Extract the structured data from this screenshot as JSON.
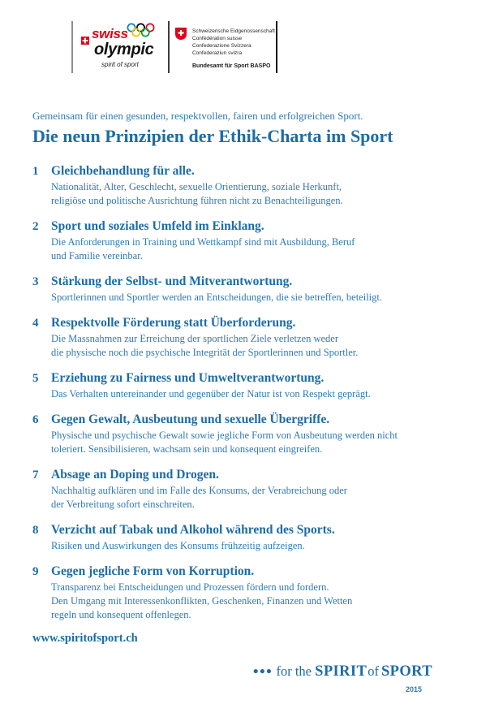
{
  "colors": {
    "heading_blue": "#1d6ca5",
    "body_blue": "#2e7ab2",
    "swiss_red": "#e2001a",
    "ring_blue": "#0085c7",
    "ring_black": "#000000",
    "ring_red": "#df0024",
    "ring_yellow": "#f4c300",
    "ring_green": "#009f3d"
  },
  "header": {
    "swiss_olympic": {
      "word_top": "swiss",
      "word_bottom": "olympic",
      "tagline": "spirit of sport",
      "cross_icon": "swiss-cross",
      "rings_icon": "olympic-rings"
    },
    "confederation": {
      "shield_icon": "swiss-shield",
      "names": "Schweizerische Eidgenossenschaft\nConfédération suisse\nConfederazione Svizzera\nConfederaziun svizra",
      "department": "Bundesamt für Sport BASPO"
    }
  },
  "intro": {
    "subtitle": "Gemeinsam für einen gesunden, respektvollen, fairen und erfolgreichen Sport.",
    "title": "Die neun Prinzipien der Ethik-Charta im Sport"
  },
  "principles": [
    {
      "number": "1",
      "heading": "Gleichbehandlung für alle.",
      "body": "Nationalität, Alter, Geschlecht, sexuelle Orientierung, soziale Herkunft,\nreligiöse und politische Ausrichtung führen nicht zu Benachteiligungen."
    },
    {
      "number": "2",
      "heading": "Sport und soziales Umfeld im Einklang.",
      "body": "Die Anforderungen in Training und Wettkampf sind mit Ausbildung, Beruf\nund Familie vereinbar."
    },
    {
      "number": "3",
      "heading": "Stärkung der Selbst- und Mitverantwortung.",
      "body": "Sportlerinnen und Sportler werden an Entscheidungen, die sie betreffen, beteiligt."
    },
    {
      "number": "4",
      "heading": "Respektvolle Förderung statt Überforderung.",
      "body": "Die Massnahmen zur Erreichung der sportlichen Ziele verletzen weder\ndie physische noch die psychische Integrität der Sportlerinnen und Sportler."
    },
    {
      "number": "5",
      "heading": "Erziehung zu Fairness und Umweltverantwortung.",
      "body": "Das Verhalten untereinander und gegenüber der Natur ist von Respekt geprägt."
    },
    {
      "number": "6",
      "heading": "Gegen Gewalt, Ausbeutung und sexuelle Übergriffe.",
      "body": "Physische und psychische Gewalt sowie jegliche Form von Ausbeutung werden nicht\ntoleriert. Sensibilisieren, wachsam sein und konsequent eingreifen."
    },
    {
      "number": "7",
      "heading": "Absage an Doping und Drogen.",
      "body": "Nachhaltig aufklären und im Falle des Konsums, der Verabreichung oder\nder Verbreitung sofort einschreiten."
    },
    {
      "number": "8",
      "heading": "Verzicht auf Tabak und Alkohol während des Sports.",
      "body": "Risiken und Auswirkungen des Konsums frühzeitig aufzeigen."
    },
    {
      "number": "9",
      "heading": "Gegen jegliche Form von Korruption.",
      "body": "Transparenz bei Entscheidungen und Prozessen fördern und fordern.\nDen Umgang mit Interessenkonflikten, Geschenken, Finanzen und Wetten\nregeln und konsequent offenlegen."
    }
  ],
  "footer": {
    "website": "www.spiritofsport.ch",
    "tagline": {
      "dots": "•••",
      "for_the": " for the ",
      "spirit": "SPIRIT",
      "of": "of",
      "sport": "SPORT"
    },
    "year": "2015"
  }
}
